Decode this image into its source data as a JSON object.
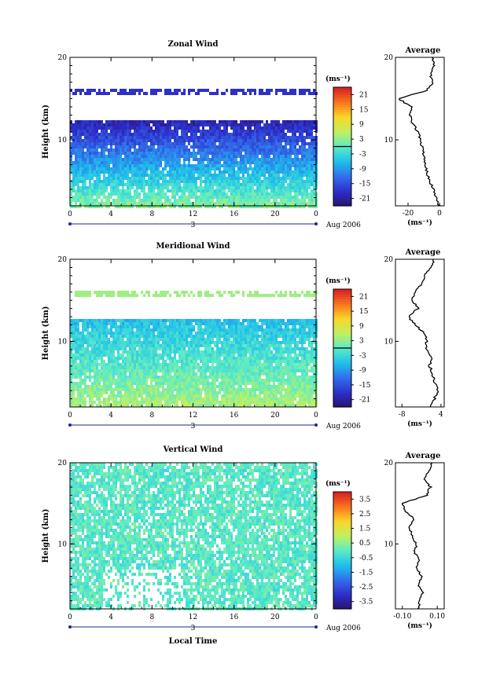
{
  "chart_data": [
    {
      "type": "heatmap",
      "title": "Zonal Wind",
      "ylabel": "Height (km)",
      "xlabel": "",
      "x_ticks": [
        "0",
        "4",
        "8",
        "12",
        "16",
        "20",
        "0"
      ],
      "y_ticks": [
        "10",
        "20"
      ],
      "xlim": [
        0,
        24
      ],
      "ylim": [
        2,
        20
      ],
      "date_day": "3",
      "date_label": "Aug 2006",
      "colorbar": {
        "unit": "(ms⁻¹)",
        "ticks": [
          "21",
          "15",
          "9",
          "3",
          "-3",
          "-9",
          "-15",
          "-21"
        ],
        "range": [
          -24,
          24
        ],
        "contour_level": 0
      },
      "profile": {
        "title": "Average",
        "x_ticks": [
          "-20",
          "0"
        ],
        "xlim": [
          -28,
          3
        ],
        "y_ticks": [
          "10",
          "20"
        ],
        "unit": "(ms⁻¹)",
        "heights_km": [
          2,
          3,
          4,
          5,
          6,
          7,
          8,
          9,
          10,
          11,
          12,
          13,
          14,
          15,
          16,
          17,
          18,
          19,
          20
        ],
        "values": [
          0,
          -2,
          -4,
          -6,
          -8,
          -9,
          -10,
          -11,
          -12,
          -14,
          -17,
          -19,
          -18,
          -26,
          -8,
          -4,
          -6,
          -3,
          -5
        ]
      },
      "field": {
        "surface_value": 3,
        "max_negative": -20,
        "top_km": 12.5,
        "band_km": [
          15.5,
          16
        ]
      }
    },
    {
      "type": "heatmap",
      "title": "Meridional Wind",
      "ylabel": "Height (km)",
      "xlabel": "",
      "x_ticks": [
        "0",
        "4",
        "8",
        "12",
        "16",
        "20",
        "0"
      ],
      "y_ticks": [
        "10",
        "20"
      ],
      "xlim": [
        0,
        24
      ],
      "ylim": [
        2,
        20
      ],
      "date_day": "3",
      "date_label": "Aug 2006",
      "colorbar": {
        "unit": "(ms⁻¹)",
        "ticks": [
          "21",
          "15",
          "9",
          "3",
          "-3",
          "-9",
          "-15",
          "-21"
        ],
        "range": [
          -24,
          24
        ],
        "contour_level": 0
      },
      "profile": {
        "title": "Average",
        "x_ticks": [
          "-8",
          "4"
        ],
        "xlim": [
          -10,
          5
        ],
        "y_ticks": [
          "10",
          "20"
        ],
        "unit": "(ms⁻¹)",
        "heights_km": [
          2,
          3,
          4,
          5,
          6,
          7,
          8,
          9,
          10,
          11,
          12,
          13,
          14,
          15,
          16,
          17,
          18,
          19,
          20
        ],
        "values": [
          1,
          2,
          3,
          2,
          1.5,
          0.5,
          1,
          -0.5,
          -0.5,
          -1,
          -4,
          -6,
          -3,
          -5,
          -4,
          -2,
          -1,
          1,
          2
        ]
      },
      "field": {
        "surface_value": 5,
        "max_negative": -6,
        "top_km": 13,
        "band_km": [
          15.5,
          16
        ]
      }
    },
    {
      "type": "heatmap",
      "title": "Vertical Wind",
      "ylabel": "Height (km)",
      "xlabel": "Local Time",
      "x_ticks": [
        "0",
        "4",
        "8",
        "12",
        "16",
        "20",
        "0"
      ],
      "y_ticks": [
        "10",
        "20"
      ],
      "xlim": [
        0,
        24
      ],
      "ylim": [
        2,
        20
      ],
      "date_day": "3",
      "date_label": "Aug 2006",
      "colorbar": {
        "unit": "(ms⁻¹)",
        "ticks": [
          "3.5",
          "2.5",
          "1.5",
          "0.5",
          "-0.5",
          "-1.5",
          "-2.5",
          "-3.5"
        ],
        "range": [
          -4,
          4
        ],
        "contour_level": null
      },
      "profile": {
        "title": "Average",
        "x_ticks": [
          "-0.10",
          "0.10"
        ],
        "xlim": [
          -0.14,
          0.14
        ],
        "y_ticks": [
          "10",
          "20"
        ],
        "unit": "(ms⁻¹)",
        "heights_km": [
          2,
          3,
          4,
          5,
          6,
          7,
          8,
          9,
          10,
          11,
          12,
          13,
          14,
          15,
          16,
          17,
          18,
          19,
          20
        ],
        "values": [
          -0.01,
          0.0,
          0.02,
          -0.01,
          0.01,
          -0.02,
          0.0,
          -0.03,
          -0.02,
          -0.04,
          -0.06,
          -0.03,
          -0.08,
          -0.1,
          0.04,
          0.06,
          0.03,
          0.05,
          0.07
        ]
      },
      "field": {
        "surface_value": 0,
        "max_negative": -0.4,
        "top_km": 19.5,
        "band_km": [
          16,
          16.5
        ]
      }
    }
  ]
}
